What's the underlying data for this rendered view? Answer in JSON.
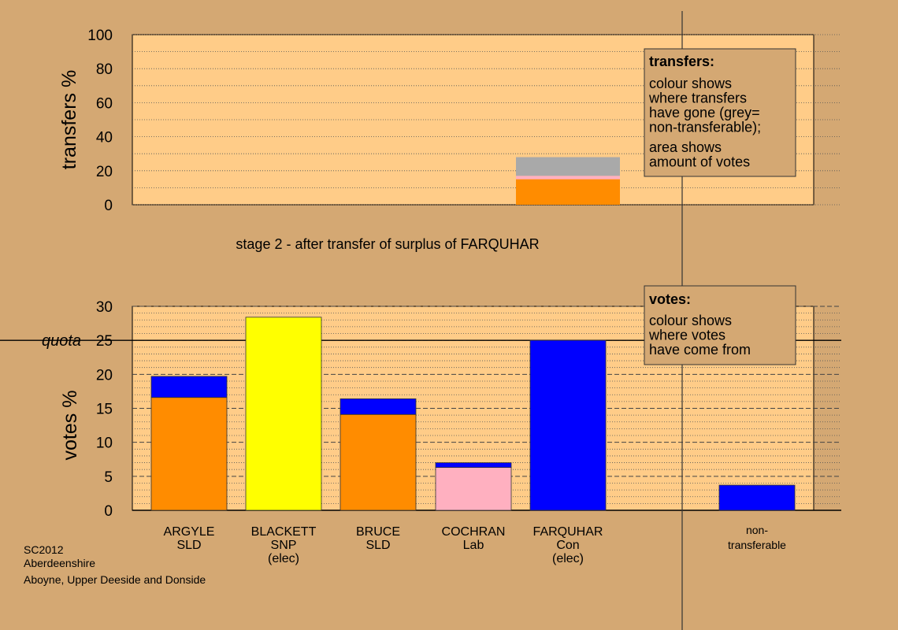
{
  "colors": {
    "background": "#D4A873",
    "panel": "#FFCC88",
    "orange": "#FF8C00",
    "blue": "#0000FF",
    "yellow": "#FFFF00",
    "pink": "#FFB0C0",
    "grey": "#A9A9A9",
    "legend_box": "#D4A873"
  },
  "stage_caption": "stage 2 - after transfer of surplus of FARQUHAR",
  "footer": {
    "line1": "SC2012",
    "line2": "Aberdeenshire",
    "line3": "Aboyne, Upper Deeside and Donside"
  },
  "transfers_legend": {
    "title": "transfers:",
    "lines1": [
      "colour shows",
      "where transfers",
      "have gone (grey=",
      "non-transferable);"
    ],
    "lines2": [
      "area shows",
      "amount of votes"
    ]
  },
  "votes_legend": {
    "title": "votes:",
    "lines1": [
      "colour shows",
      "where votes",
      "have come from"
    ]
  },
  "chart_data": [
    {
      "type": "bar",
      "name": "transfers",
      "ylabel": "transfers %",
      "ylim": [
        0,
        100
      ],
      "yticks": [
        0,
        20,
        40,
        60,
        80,
        100
      ],
      "grid": true,
      "legend": "top-right",
      "stacks": [
        {
          "category": "FARQUHAR",
          "segments": [
            {
              "color": "orange",
              "value": 15
            },
            {
              "color": "pink",
              "value": 2
            },
            {
              "color": "grey",
              "value": 11
            }
          ]
        }
      ]
    },
    {
      "type": "bar",
      "name": "votes",
      "ylabel": "votes %",
      "ylim": [
        0,
        30
      ],
      "yticks": [
        0,
        5,
        10,
        15,
        20,
        25,
        30
      ],
      "quota_label": "quota",
      "quota": 25,
      "grid": true,
      "legend": "top-right",
      "categories": [
        {
          "lines": [
            "ARGYLE",
            "SLD"
          ],
          "segments": [
            {
              "color": "orange",
              "value": 16.6
            },
            {
              "color": "blue",
              "value": 3.1
            }
          ]
        },
        {
          "lines": [
            "BLACKETT",
            "SNP",
            "(elec)"
          ],
          "segments": [
            {
              "color": "yellow",
              "value": 28.4
            }
          ]
        },
        {
          "lines": [
            "BRUCE",
            "SLD"
          ],
          "segments": [
            {
              "color": "orange",
              "value": 14.1
            },
            {
              "color": "blue",
              "value": 2.3
            }
          ]
        },
        {
          "lines": [
            "COCHRAN",
            "Lab"
          ],
          "segments": [
            {
              "color": "pink",
              "value": 6.3
            },
            {
              "color": "blue",
              "value": 0.7
            }
          ]
        },
        {
          "lines": [
            "FARQUHAR",
            "Con",
            "(elec)"
          ],
          "segments": [
            {
              "color": "blue",
              "value": 25.0
            }
          ]
        },
        {
          "lines": [
            "non-",
            "transferable"
          ],
          "segments": [
            {
              "color": "blue",
              "value": 3.7
            }
          ]
        }
      ]
    }
  ]
}
